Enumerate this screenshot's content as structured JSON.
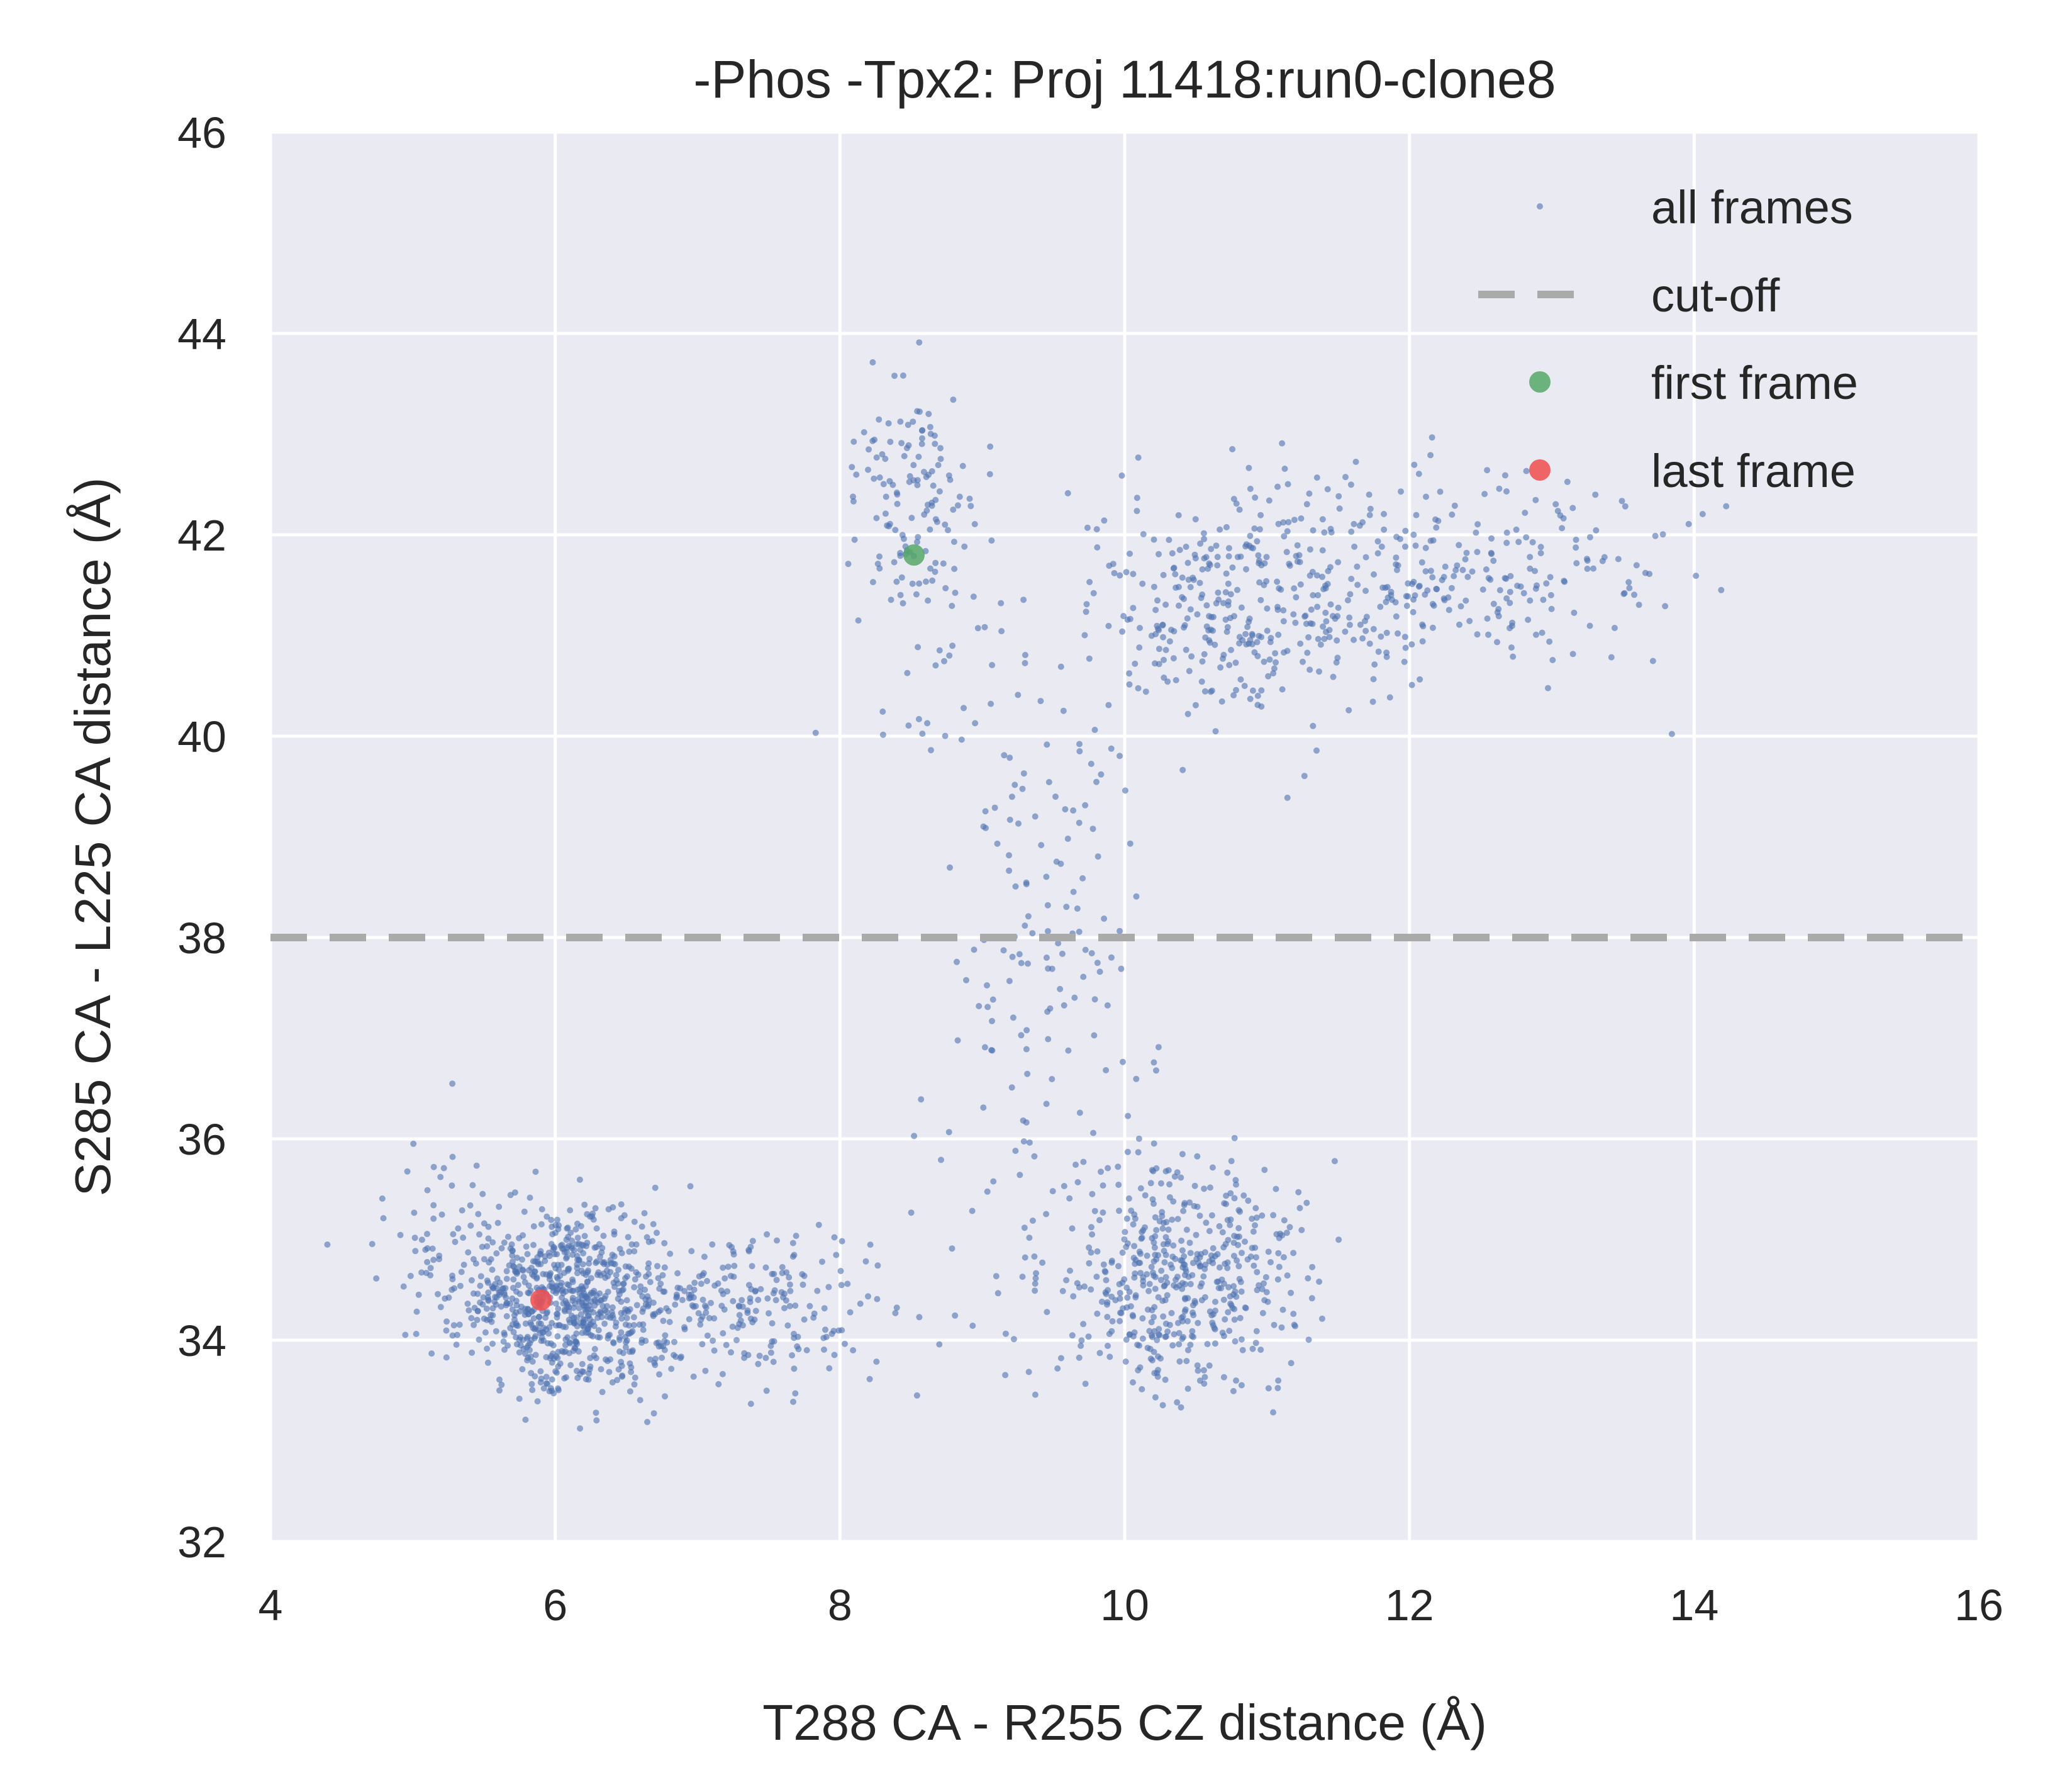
{
  "chart_data": {
    "type": "scatter",
    "title": "-Phos -Tpx2: Proj 11418:run0-clone8",
    "xlabel": "T288 CA - R255 CZ distance (Å)",
    "ylabel": "S285 CA - L225 CA distance (Å)",
    "xlim": [
      4,
      16
    ],
    "ylim": [
      32,
      46
    ],
    "xticks": [
      "4",
      "6",
      "8",
      "10",
      "12",
      "14",
      "16"
    ],
    "yticks": [
      "32",
      "34",
      "36",
      "38",
      "40",
      "42",
      "44",
      "46"
    ],
    "grid": true,
    "legend_position": "top-right",
    "colors": {
      "background": "#EAEAF2",
      "grid": "#FFFFFF",
      "points": "#4C72B0",
      "cutoff": "#AAAAAA",
      "first": "#55A868",
      "last": "#F04E4E"
    },
    "series": [
      {
        "name": "all frames",
        "kind": "points",
        "clusters": [
          {
            "center": [
              6.0,
              34.4
            ],
            "spread": [
              0.32,
              0.45
            ],
            "count": 650
          },
          {
            "center": [
              6.9,
              34.3
            ],
            "spread": [
              0.55,
              0.45
            ],
            "count": 260
          },
          {
            "center": [
              7.7,
              34.3
            ],
            "spread": [
              0.3,
              0.3
            ],
            "count": 60
          },
          {
            "center": [
              5.2,
              35.0
            ],
            "spread": [
              0.25,
              0.45
            ],
            "count": 60
          },
          {
            "center": [
              10.4,
              34.6
            ],
            "spread": [
              0.42,
              0.55
            ],
            "count": 480
          },
          {
            "center": [
              8.5,
              42.4
            ],
            "spread": [
              0.22,
              0.7
            ],
            "count": 130
          },
          {
            "center": [
              10.8,
              41.3
            ],
            "spread": [
              0.55,
              0.6
            ],
            "count": 330
          },
          {
            "center": [
              12.4,
              41.6
            ],
            "spread": [
              0.7,
              0.5
            ],
            "count": 250
          },
          {
            "center": [
              9.5,
              38.0
            ],
            "spread": [
              0.35,
              1.35
            ],
            "count": 120
          },
          {
            "center": [
              9.0,
              40.5
            ],
            "spread": [
              0.35,
              0.8
            ],
            "count": 40
          },
          {
            "center": [
              9.3,
              35.0
            ],
            "spread": [
              0.4,
              0.7
            ],
            "count": 40
          }
        ],
        "seed": 11418
      },
      {
        "name": "cut-off",
        "kind": "hline",
        "y": 38
      },
      {
        "name": "first frame",
        "kind": "point",
        "x": 8.52,
        "y": 41.8
      },
      {
        "name": "last frame",
        "kind": "point",
        "x": 5.9,
        "y": 34.4
      }
    ]
  }
}
